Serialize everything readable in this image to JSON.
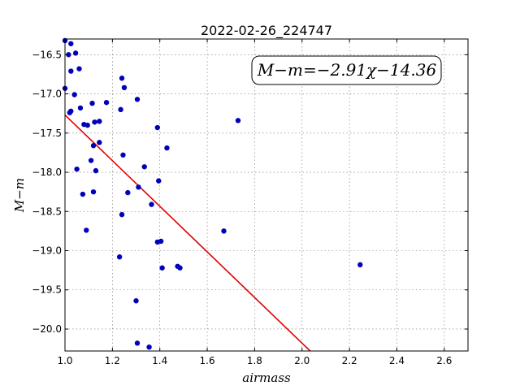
{
  "chart_data": {
    "type": "scatter",
    "title": "2022-02-26_224747",
    "xlabel": "airmass",
    "ylabel": "M−m",
    "xlim": [
      1.0,
      2.7
    ],
    "ylim": [
      -20.28,
      -16.3
    ],
    "xticks": [
      1.0,
      1.2,
      1.4,
      1.6,
      1.8,
      2.0,
      2.2,
      2.4,
      2.6
    ],
    "xtick_labels": [
      "1.0",
      "1.2",
      "1.4",
      "1.6",
      "1.8",
      "2.0",
      "2.2",
      "2.4",
      "2.6"
    ],
    "yticks": [
      -16.5,
      -17.0,
      -17.5,
      -18.0,
      -18.5,
      -19.0,
      -19.5,
      -20.0
    ],
    "ytick_labels": [
      "−16.5",
      "−17.0",
      "−17.5",
      "−18.0",
      "−18.5",
      "−19.0",
      "−19.5",
      "−20.0"
    ],
    "grid": true,
    "annotation": "M−m=−2.91χ−14.36",
    "annotation_position": "top-right",
    "fit_line": {
      "slope": -2.91,
      "intercept": -14.36,
      "color": "#e00000"
    },
    "marker_color": "#0000bb",
    "points": [
      [
        1.0,
        -16.32
      ],
      [
        1.0,
        -16.93
      ],
      [
        1.015,
        -16.5
      ],
      [
        1.025,
        -16.36
      ],
      [
        1.045,
        -16.48
      ],
      [
        1.025,
        -16.71
      ],
      [
        1.06,
        -16.68
      ],
      [
        1.04,
        -17.01
      ],
      [
        1.02,
        -17.24
      ],
      [
        1.025,
        -17.22
      ],
      [
        1.065,
        -17.18
      ],
      [
        1.08,
        -17.39
      ],
      [
        1.095,
        -17.4
      ],
      [
        1.115,
        -17.12
      ],
      [
        1.125,
        -17.36
      ],
      [
        1.145,
        -17.35
      ],
      [
        1.175,
        -17.11
      ],
      [
        1.24,
        -16.8
      ],
      [
        1.25,
        -16.92
      ],
      [
        1.235,
        -17.2
      ],
      [
        1.305,
        -17.07
      ],
      [
        1.12,
        -17.66
      ],
      [
        1.145,
        -17.62
      ],
      [
        1.11,
        -17.85
      ],
      [
        1.05,
        -17.96
      ],
      [
        1.13,
        -17.98
      ],
      [
        1.075,
        -18.28
      ],
      [
        1.12,
        -18.25
      ],
      [
        1.245,
        -17.78
      ],
      [
        1.335,
        -17.93
      ],
      [
        1.39,
        -17.43
      ],
      [
        1.43,
        -17.69
      ],
      [
        1.395,
        -18.11
      ],
      [
        1.31,
        -18.19
      ],
      [
        1.265,
        -18.26
      ],
      [
        1.24,
        -18.54
      ],
      [
        1.365,
        -18.41
      ],
      [
        1.09,
        -18.74
      ],
      [
        1.39,
        -18.89
      ],
      [
        1.405,
        -18.88
      ],
      [
        1.23,
        -19.08
      ],
      [
        1.41,
        -19.22
      ],
      [
        1.475,
        -19.2
      ],
      [
        1.485,
        -19.22
      ],
      [
        1.3,
        -19.64
      ],
      [
        1.305,
        -20.18
      ],
      [
        1.355,
        -20.23
      ],
      [
        1.67,
        -18.75
      ],
      [
        1.73,
        -17.34
      ],
      [
        2.245,
        -19.18
      ]
    ]
  }
}
